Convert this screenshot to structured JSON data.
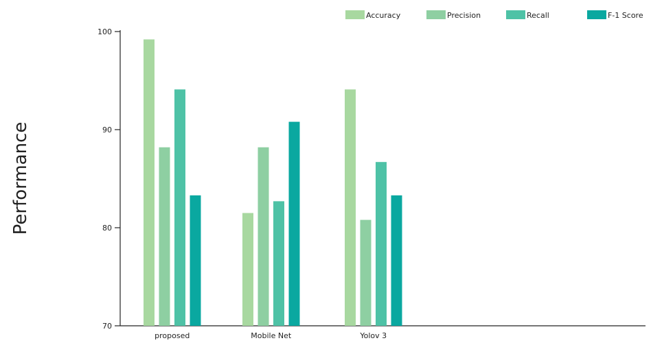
{
  "chart_data": {
    "type": "bar",
    "title": "",
    "xlabel": "",
    "ylabel": "Performance",
    "ylim": [
      70,
      100
    ],
    "yticks": [
      70,
      80,
      90,
      100
    ],
    "grid": false,
    "legend_position": "top-right",
    "categories": [
      "proposed",
      "Mobile Net",
      "Yolov 3"
    ],
    "series": [
      {
        "name": "Accuracy",
        "color": "#a8d8a0",
        "values": [
          99.2,
          81.5,
          94.1
        ]
      },
      {
        "name": "Precision",
        "color": "#8ecfa2",
        "values": [
          88.2,
          88.2,
          80.8
        ]
      },
      {
        "name": "Recall",
        "color": "#4ec2a6",
        "values": [
          94.1,
          82.7,
          86.7
        ]
      },
      {
        "name": "F-1 Score",
        "color": "#0aa8a0",
        "values": [
          83.3,
          90.8,
          83.3
        ]
      }
    ]
  }
}
